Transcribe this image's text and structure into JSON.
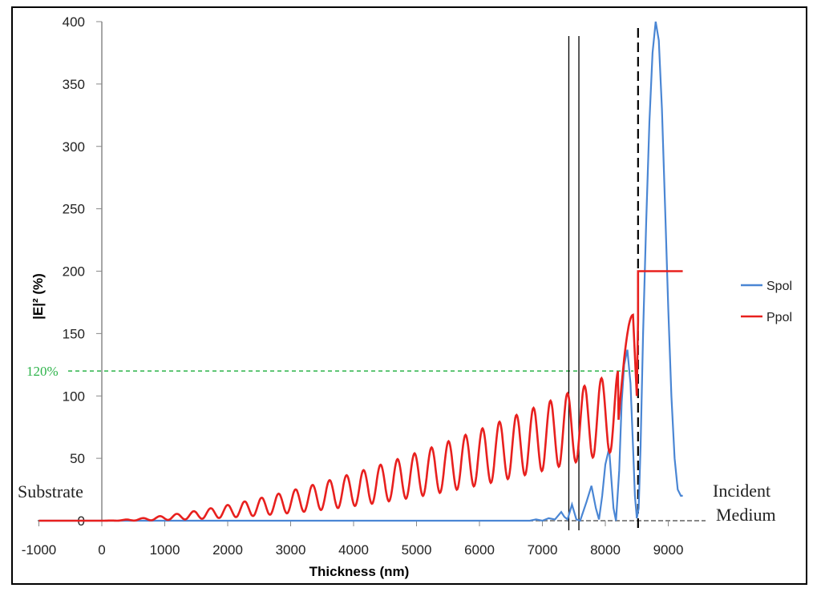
{
  "chart_data": {
    "type": "line",
    "xlabel": "Thickness (nm)",
    "ylabel": "|E|² (%)",
    "xlim": [
      -1000,
      9000
    ],
    "ylim": [
      0,
      400
    ],
    "xticks": [
      "-1000",
      "0",
      "1000",
      "2000",
      "3000",
      "4000",
      "5000",
      "6000",
      "7000",
      "8000",
      "9000"
    ],
    "yticks": [
      "0",
      "50",
      "100",
      "150",
      "200",
      "250",
      "300",
      "350",
      "400"
    ],
    "grid": false,
    "legend_position": "right",
    "series": [
      {
        "name": "Spol",
        "color": "#4a86d4",
        "x": [
          -1000,
          6800,
          6900,
          7000,
          7100,
          7200,
          7300,
          7350,
          7400,
          7470,
          7540,
          7600,
          7700,
          7780,
          7850,
          7900,
          7950,
          8000,
          8060,
          8130,
          8170,
          8220,
          8260,
          8300,
          8350,
          8400,
          8440,
          8470,
          8500,
          8530,
          8560,
          8600,
          8650,
          8700,
          8750,
          8800,
          8850,
          8900,
          8950,
          9000,
          9050,
          9100,
          9150,
          9200,
          9230
        ],
        "y": [
          0,
          0,
          1,
          0,
          2,
          1,
          7,
          3,
          1,
          13,
          1,
          0,
          15,
          28,
          10,
          1,
          20,
          45,
          58,
          10,
          0,
          40,
          95,
          125,
          137,
          110,
          60,
          20,
          2,
          10,
          60,
          150,
          240,
          320,
          375,
          400,
          385,
          330,
          250,
          170,
          100,
          50,
          25,
          20,
          20
        ]
      },
      {
        "name": "Ppol",
        "color": "#e8201e",
        "x": [
          -1000,
          0,
          8440,
          8500,
          8520,
          8520,
          8600,
          9230
        ],
        "y": [
          0,
          0,
          150,
          100,
          160,
          200,
          200,
          200
        ],
        "note": "Ppol oscillates between a rising lower and upper envelope: period about 270 nm, peaks 0->118 across 0-8100 nm, final peak about 165 at 8440 nm, then flat 200 beyond about 8500 nm."
      }
    ],
    "annotations": {
      "reference_line_label": "120%",
      "reference_line_value": 120,
      "reference_line_color": "#2db34a",
      "substrate_label": "Substrate",
      "incident_label_1": "Incident",
      "incident_label_2": "Medium",
      "vertical_lines_solid": [
        7420,
        7580
      ],
      "vertical_line_dashed": 8520
    }
  }
}
